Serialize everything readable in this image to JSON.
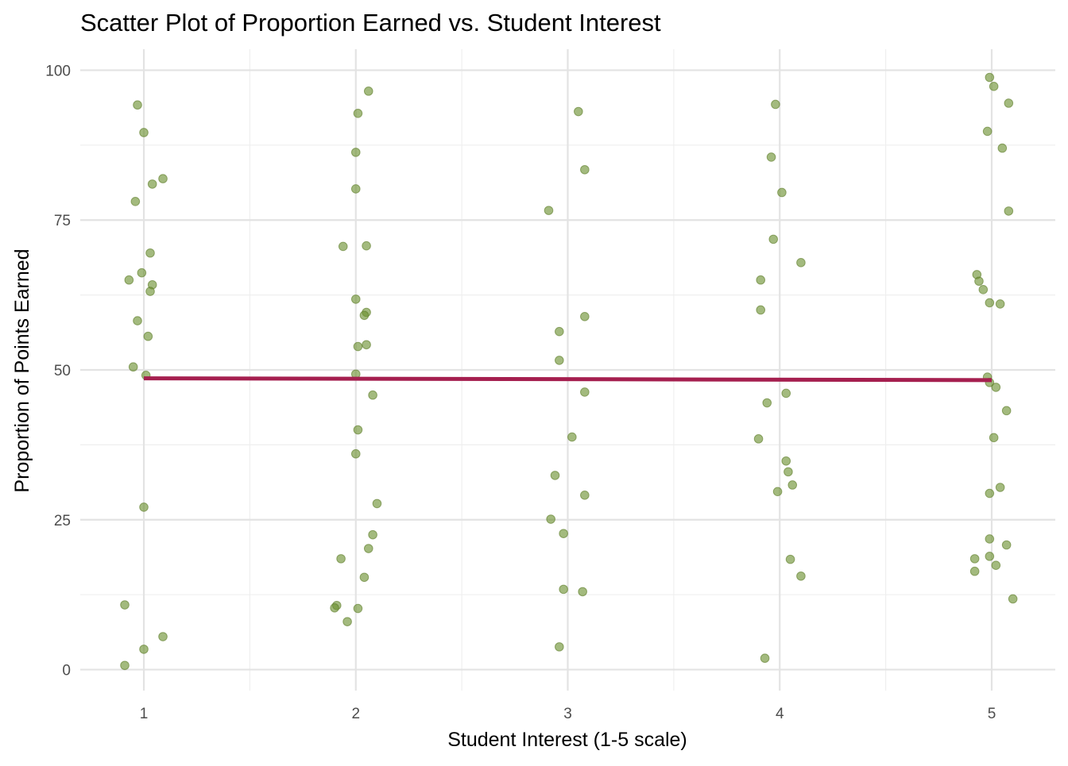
{
  "chart_data": {
    "type": "scatter",
    "title": "Scatter Plot of Proportion Earned vs. Student Interest",
    "xlabel": "Student Interest (1-5 scale)",
    "ylabel": "Proportion of Points Earned",
    "xlim": [
      0.7,
      5.3
    ],
    "ylim": [
      -3.5,
      103.5
    ],
    "x_ticks": [
      1,
      2,
      3,
      4,
      5
    ],
    "y_ticks": [
      0,
      25,
      50,
      75,
      100
    ],
    "x_tick_labels": [
      "1",
      "2",
      "3",
      "4",
      "5"
    ],
    "y_tick_labels": [
      "0",
      "25",
      "50",
      "75",
      "100"
    ],
    "grid": true,
    "legend": "none",
    "colors": {
      "points": "#6b8f2e",
      "trend": "#a51f4f"
    },
    "trend_line": {
      "x": [
        1,
        5
      ],
      "y": [
        48.6,
        48.3
      ]
    },
    "points": [
      {
        "x": 0.97,
        "y": 94.2
      },
      {
        "x": 1.0,
        "y": 89.6
      },
      {
        "x": 1.09,
        "y": 81.9
      },
      {
        "x": 1.04,
        "y": 81.0
      },
      {
        "x": 0.96,
        "y": 78.1
      },
      {
        "x": 1.03,
        "y": 69.5
      },
      {
        "x": 0.99,
        "y": 66.2
      },
      {
        "x": 0.93,
        "y": 65.0
      },
      {
        "x": 1.04,
        "y": 64.2
      },
      {
        "x": 1.03,
        "y": 63.1
      },
      {
        "x": 0.97,
        "y": 58.2
      },
      {
        "x": 1.02,
        "y": 55.6
      },
      {
        "x": 0.95,
        "y": 50.5
      },
      {
        "x": 1.01,
        "y": 49.1
      },
      {
        "x": 1.0,
        "y": 27.1
      },
      {
        "x": 0.91,
        "y": 10.8
      },
      {
        "x": 1.09,
        "y": 5.5
      },
      {
        "x": 1.0,
        "y": 3.4
      },
      {
        "x": 0.91,
        "y": 0.7
      },
      {
        "x": 2.06,
        "y": 96.5
      },
      {
        "x": 2.01,
        "y": 92.8
      },
      {
        "x": 2.0,
        "y": 86.3
      },
      {
        "x": 2.0,
        "y": 80.2
      },
      {
        "x": 1.94,
        "y": 70.6
      },
      {
        "x": 2.05,
        "y": 70.7
      },
      {
        "x": 2.0,
        "y": 61.8
      },
      {
        "x": 2.05,
        "y": 59.6
      },
      {
        "x": 2.04,
        "y": 59.1
      },
      {
        "x": 2.01,
        "y": 53.9
      },
      {
        "x": 2.05,
        "y": 54.2
      },
      {
        "x": 2.0,
        "y": 49.3
      },
      {
        "x": 2.08,
        "y": 45.8
      },
      {
        "x": 2.01,
        "y": 40.0
      },
      {
        "x": 2.0,
        "y": 36.0
      },
      {
        "x": 2.1,
        "y": 27.7
      },
      {
        "x": 2.08,
        "y": 22.5
      },
      {
        "x": 2.06,
        "y": 20.2
      },
      {
        "x": 1.93,
        "y": 18.5
      },
      {
        "x": 2.04,
        "y": 15.4
      },
      {
        "x": 1.91,
        "y": 10.7
      },
      {
        "x": 1.9,
        "y": 10.3
      },
      {
        "x": 2.01,
        "y": 10.2
      },
      {
        "x": 1.96,
        "y": 8.0
      },
      {
        "x": 3.05,
        "y": 93.1
      },
      {
        "x": 3.08,
        "y": 83.4
      },
      {
        "x": 2.91,
        "y": 76.6
      },
      {
        "x": 3.08,
        "y": 58.9
      },
      {
        "x": 2.96,
        "y": 56.4
      },
      {
        "x": 2.96,
        "y": 51.6
      },
      {
        "x": 3.08,
        "y": 46.3
      },
      {
        "x": 3.02,
        "y": 38.8
      },
      {
        "x": 2.94,
        "y": 32.4
      },
      {
        "x": 3.08,
        "y": 29.1
      },
      {
        "x": 2.92,
        "y": 25.1
      },
      {
        "x": 2.98,
        "y": 22.7
      },
      {
        "x": 2.98,
        "y": 13.4
      },
      {
        "x": 3.07,
        "y": 13.0
      },
      {
        "x": 2.96,
        "y": 3.8
      },
      {
        "x": 3.98,
        "y": 94.3
      },
      {
        "x": 3.96,
        "y": 85.5
      },
      {
        "x": 4.01,
        "y": 79.6
      },
      {
        "x": 3.97,
        "y": 71.8
      },
      {
        "x": 4.1,
        "y": 67.9
      },
      {
        "x": 3.91,
        "y": 65.0
      },
      {
        "x": 3.91,
        "y": 60.0
      },
      {
        "x": 4.03,
        "y": 46.1
      },
      {
        "x": 3.94,
        "y": 44.5
      },
      {
        "x": 3.9,
        "y": 38.5
      },
      {
        "x": 4.03,
        "y": 34.8
      },
      {
        "x": 4.04,
        "y": 33.0
      },
      {
        "x": 4.06,
        "y": 30.8
      },
      {
        "x": 3.99,
        "y": 29.7
      },
      {
        "x": 4.05,
        "y": 18.4
      },
      {
        "x": 4.1,
        "y": 15.6
      },
      {
        "x": 3.93,
        "y": 1.9
      },
      {
        "x": 4.99,
        "y": 98.8
      },
      {
        "x": 5.01,
        "y": 97.3
      },
      {
        "x": 5.08,
        "y": 94.5
      },
      {
        "x": 4.98,
        "y": 89.8
      },
      {
        "x": 5.05,
        "y": 87.0
      },
      {
        "x": 5.08,
        "y": 76.5
      },
      {
        "x": 4.93,
        "y": 65.9
      },
      {
        "x": 4.94,
        "y": 64.8
      },
      {
        "x": 4.96,
        "y": 63.4
      },
      {
        "x": 4.99,
        "y": 61.2
      },
      {
        "x": 5.04,
        "y": 61.0
      },
      {
        "x": 4.98,
        "y": 48.8
      },
      {
        "x": 4.99,
        "y": 47.9
      },
      {
        "x": 5.02,
        "y": 47.1
      },
      {
        "x": 5.07,
        "y": 43.2
      },
      {
        "x": 5.01,
        "y": 38.7
      },
      {
        "x": 5.04,
        "y": 30.4
      },
      {
        "x": 4.99,
        "y": 29.4
      },
      {
        "x": 4.99,
        "y": 21.8
      },
      {
        "x": 5.07,
        "y": 20.8
      },
      {
        "x": 4.99,
        "y": 18.9
      },
      {
        "x": 4.92,
        "y": 18.5
      },
      {
        "x": 5.02,
        "y": 17.4
      },
      {
        "x": 4.92,
        "y": 16.4
      },
      {
        "x": 5.1,
        "y": 11.8
      }
    ]
  }
}
